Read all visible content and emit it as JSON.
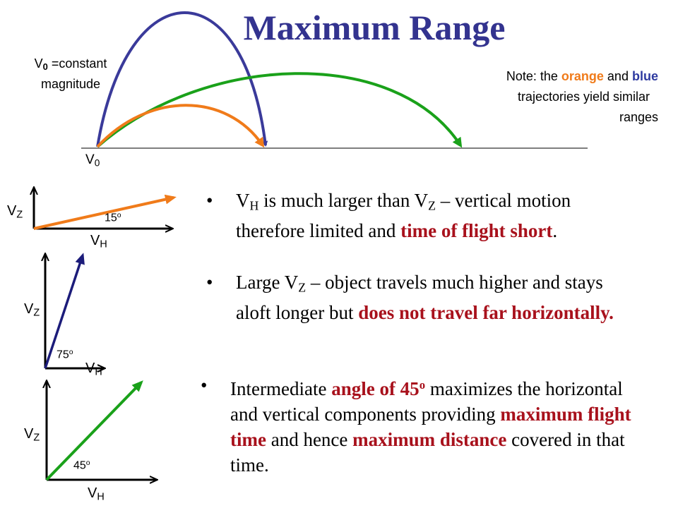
{
  "title": "Maximum Range",
  "v0_note": {
    "symbol": "V",
    "sub": "0",
    "text": "=constant",
    "line2": "magnitude"
  },
  "note": {
    "prefix": "Note: the",
    "orange_word": "orange",
    "and": "and",
    "blue_word": "blue",
    "line2": "trajectories yield similar",
    "line3": "ranges"
  },
  "launch_label": {
    "symbol": "V",
    "sub": "0"
  },
  "diagrams": [
    {
      "vz": "V",
      "vz_sub": "Z",
      "vh": "V",
      "vh_sub": "H",
      "angle": "15",
      "deg": "o",
      "color": "#f07b1a"
    },
    {
      "vz": "V",
      "vz_sub": "Z",
      "vh": "V",
      "vh_sub": "H",
      "angle": "75",
      "deg": "o",
      "color": "#1c1c7a"
    },
    {
      "vz": "V",
      "vz_sub": "Z",
      "vh": "V",
      "vh_sub": "H",
      "angle": "45",
      "deg": "o",
      "color": "#1aa11a"
    }
  ],
  "trajectory_colors": {
    "blue": "#3a3a9a",
    "green": "#1aa11a",
    "orange": "#f07b1a"
  },
  "bullets": {
    "b1": {
      "dot": "•",
      "v1": "V",
      "v1_sub": "H",
      "t1": " is much larger than ",
      "v2": "V",
      "v2_sub": "Z",
      "t2": " – vertical motion therefore limited and ",
      "red": "time of flight short",
      "t3": "."
    },
    "b2": {
      "dot": "•",
      "t1": "Large ",
      "v1": "V",
      "v1_sub": "Z",
      "t2": " – object travels much higher and stays aloft longer but ",
      "red": "does not travel far horizontally."
    },
    "b3": {
      "dot": "•",
      "t1": "Intermediate ",
      "red1": "angle of 45",
      "red1_sup": "o",
      "t2": " maximizes the horizontal and vertical components providing ",
      "red2": "maximum flight time",
      "t3": " and hence ",
      "red3": "maximum distance",
      "t4": " covered in that time."
    }
  }
}
